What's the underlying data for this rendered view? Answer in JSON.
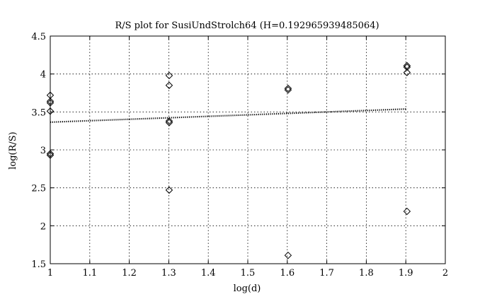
{
  "chart_data": {
    "type": "scatter",
    "title": "R/S plot for SusiUndStrolch64 (H=0.192965939485064)",
    "xlabel": "log(d)",
    "ylabel": "log(R/S)",
    "xlim": [
      1,
      2
    ],
    "ylim": [
      1.5,
      4.5
    ],
    "xticks": [
      "1",
      "1.1",
      "1.2",
      "1.3",
      "1.4",
      "1.5",
      "1.6",
      "1.7",
      "1.8",
      "1.9",
      "2"
    ],
    "yticks": [
      "1.5",
      "2",
      "2.5",
      "3",
      "3.5",
      "4",
      "4.5"
    ],
    "grid": true,
    "marker": "diamond",
    "series": [
      {
        "points": [
          {
            "x": 1.0,
            "y": 3.72
          },
          {
            "x": 1.0,
            "y": 3.64
          },
          {
            "x": 1.0,
            "y": 3.62
          },
          {
            "x": 1.0,
            "y": 3.51
          },
          {
            "x": 1.0,
            "y": 2.95
          },
          {
            "x": 1.0,
            "y": 2.93
          },
          {
            "x": 1.301,
            "y": 3.98
          },
          {
            "x": 1.301,
            "y": 3.85
          },
          {
            "x": 1.301,
            "y": 3.38
          },
          {
            "x": 1.301,
            "y": 3.36
          },
          {
            "x": 1.301,
            "y": 2.47
          },
          {
            "x": 1.602,
            "y": 3.81
          },
          {
            "x": 1.602,
            "y": 3.79
          },
          {
            "x": 1.602,
            "y": 1.61
          },
          {
            "x": 1.903,
            "y": 4.11
          },
          {
            "x": 1.903,
            "y": 4.09
          },
          {
            "x": 1.903,
            "y": 4.02
          },
          {
            "x": 1.903,
            "y": 2.19
          }
        ]
      }
    ],
    "fit_line": {
      "style": "dotted",
      "x": [
        1.0,
        1.903
      ],
      "y": [
        3.365,
        3.539
      ]
    }
  }
}
